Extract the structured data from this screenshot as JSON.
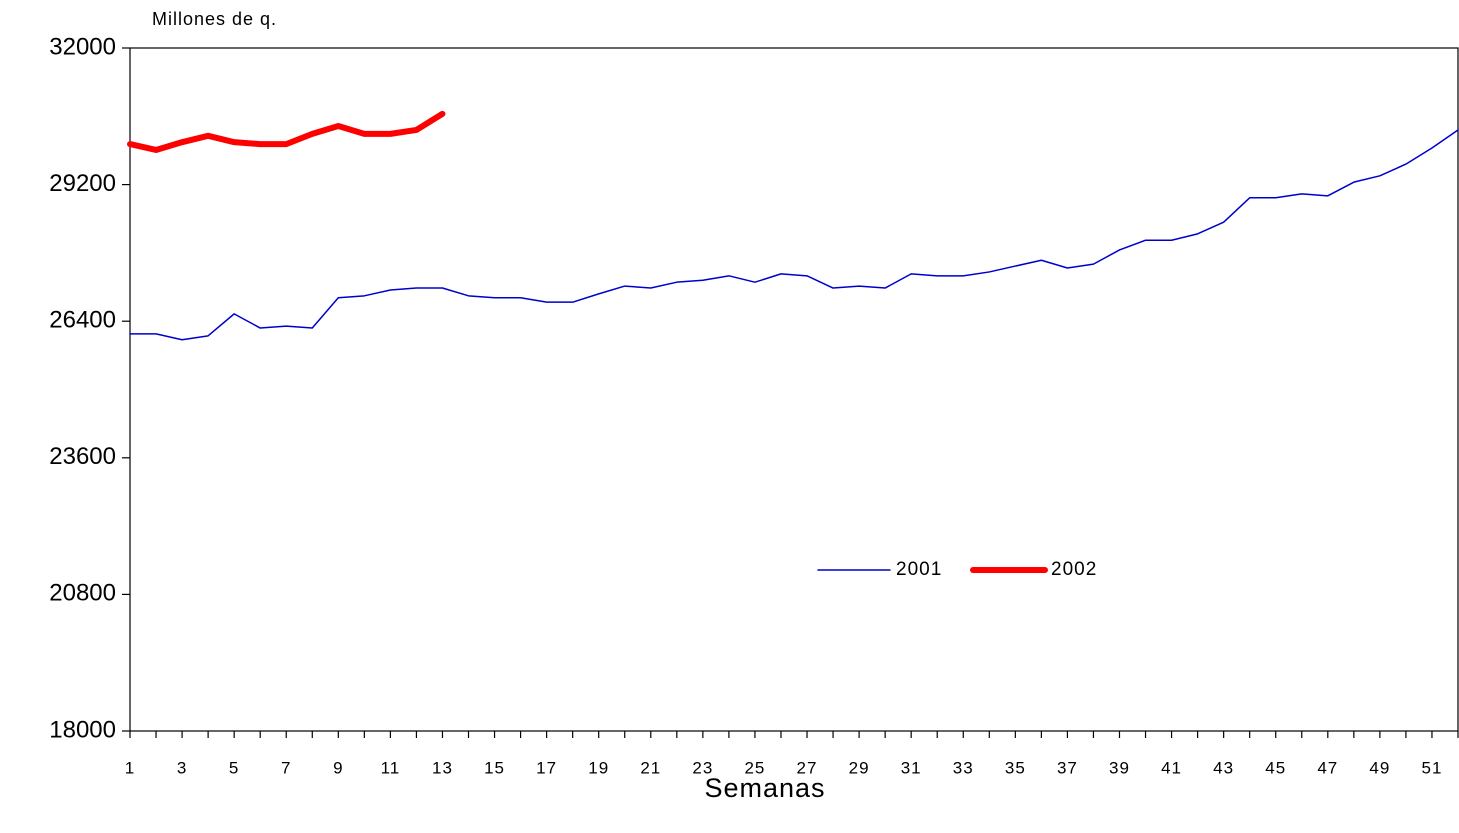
{
  "chart_data": {
    "type": "line",
    "y_label": "Millones de q.",
    "x_label": "Semanas",
    "categories": [
      "1",
      null,
      "3",
      null,
      "5",
      null,
      "7",
      null,
      "9",
      null,
      "11",
      null,
      "13",
      null,
      "15",
      null,
      "17",
      null,
      "19",
      null,
      "21",
      null,
      "23",
      null,
      "25",
      null,
      "27",
      null,
      "29",
      null,
      "31",
      null,
      "33",
      null,
      "35",
      null,
      "37",
      null,
      "39",
      null,
      "41",
      null,
      "43",
      null,
      "45",
      null,
      "47",
      null,
      "49",
      null,
      "51",
      null
    ],
    "series": [
      {
        "name": "2001",
        "color": "#0000cc",
        "width": 1.5,
        "values": [
          26140,
          26140,
          26020,
          26100,
          26550,
          26260,
          26300,
          26260,
          26880,
          26920,
          27040,
          27080,
          27080,
          26920,
          26880,
          26880,
          26790,
          26790,
          26960,
          27120,
          27080,
          27200,
          27240,
          27330,
          27200,
          27370,
          27330,
          27080,
          27120,
          27080,
          27370,
          27330,
          27330,
          27410,
          27530,
          27650,
          27490,
          27570,
          27860,
          28060,
          28060,
          28190,
          28430,
          28930,
          28930,
          29010,
          28970,
          29250,
          29380,
          29620,
          29950,
          30320
        ]
      },
      {
        "name": "2002",
        "color": "#ff0000",
        "width": 6,
        "values": [
          30030,
          29910,
          30070,
          30200,
          30070,
          30030,
          30030,
          30240,
          30400,
          30240,
          30240,
          30320,
          30650,
          null,
          null,
          null,
          null,
          null,
          null,
          null,
          null,
          null,
          null,
          null,
          null,
          null,
          null,
          null,
          null,
          null,
          null,
          null,
          null,
          null,
          null,
          null,
          null,
          null,
          null,
          null,
          null,
          null,
          null,
          null,
          null,
          null,
          null,
          null,
          null,
          null,
          null,
          null
        ]
      }
    ],
    "ylim": [
      18000,
      32000
    ],
    "yticks": [
      18000,
      20800,
      23600,
      26400,
      29200,
      32000
    ]
  }
}
